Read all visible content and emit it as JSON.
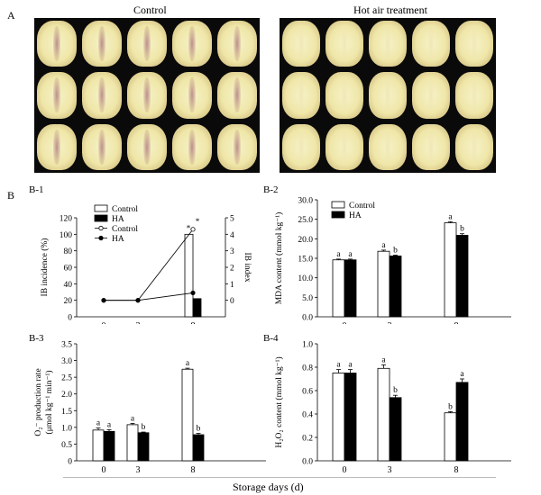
{
  "figure": {
    "panel_a_label": "A",
    "panel_b_label": "B",
    "photo_control_title": "Control",
    "photo_ha_title": "Hot air treatment",
    "shared_xlabel": "Storage days (d)"
  },
  "colors": {
    "control_bar": "#ffffff",
    "ha_bar": "#000000",
    "axis": "#000000",
    "photo_bg": "#0a0a0a"
  },
  "chart_data": [
    {
      "id": "B-1",
      "panel_label": "B-1",
      "type": "bar",
      "categories": [
        "0",
        "3",
        "8"
      ],
      "ylabel": "IB incidence (%)",
      "ylim": [
        0,
        120
      ],
      "yticks": [
        "0",
        "20",
        "40",
        "60",
        "80",
        "100",
        "120"
      ],
      "series": [
        {
          "name": "Control",
          "values": [
            0,
            0,
            100
          ]
        },
        {
          "name": "HA",
          "values": [
            0,
            0,
            22
          ]
        }
      ],
      "secondary": {
        "type": "line",
        "ylabel": "IB index",
        "ylim": [
          -1,
          5
        ],
        "yticks": [
          "0",
          "1",
          "2",
          "3",
          "4",
          "5"
        ],
        "series": [
          {
            "name": "Control",
            "values": [
              0,
              0,
              4.3
            ]
          },
          {
            "name": "HA",
            "values": [
              0,
              0,
              0.45
            ]
          }
        ]
      },
      "annotations": [
        "*",
        "*"
      ],
      "legend": {
        "position": "top-right",
        "entries": [
          "Control",
          "HA",
          "Control",
          "HA"
        ]
      }
    },
    {
      "id": "B-2",
      "panel_label": "B-2",
      "type": "bar",
      "categories": [
        "0",
        "3",
        "8"
      ],
      "ylabel": "MDA content (mmol kg⁻¹)",
      "ylim": [
        0,
        30
      ],
      "yticks": [
        "0.0",
        "5.0",
        "10.0",
        "15.0",
        "20.0",
        "25.0",
        "30.0"
      ],
      "series": [
        {
          "name": "Control",
          "values": [
            14.6,
            16.8,
            24.1
          ],
          "errors": [
            0.2,
            0.3,
            0.3
          ],
          "letters": [
            "a",
            "a",
            "a"
          ]
        },
        {
          "name": "HA",
          "values": [
            14.6,
            15.6,
            20.9
          ],
          "errors": [
            0.2,
            0.2,
            0.4
          ],
          "letters": [
            "a",
            "b",
            "b"
          ]
        }
      ],
      "legend": {
        "position": "top-left",
        "entries": [
          "Control",
          "HA"
        ]
      }
    },
    {
      "id": "B-3",
      "panel_label": "B-3",
      "type": "bar",
      "categories": [
        "0",
        "3",
        "8"
      ],
      "ylabel": "O₂⁻ production rate (μmol kg⁻¹ min⁻¹)",
      "ylabel_line1": "O₂⁻ production rate",
      "ylabel_line2": "(μmol kg⁻¹ min⁻¹)",
      "ylim": [
        0,
        3.5
      ],
      "yticks": [
        "0",
        "0.5",
        "1.0",
        "1.5",
        "2.0",
        "2.5",
        "3.0",
        "3.5"
      ],
      "series": [
        {
          "name": "Control",
          "values": [
            0.92,
            1.08,
            2.74
          ],
          "errors": [
            0.06,
            0.04,
            0.03
          ],
          "letters": [
            "a",
            "a",
            "a"
          ]
        },
        {
          "name": "HA",
          "values": [
            0.88,
            0.84,
            0.78
          ],
          "errors": [
            0.05,
            0.02,
            0.04
          ],
          "letters": [
            "a",
            "b",
            "b"
          ]
        }
      ]
    },
    {
      "id": "B-4",
      "panel_label": "B-4",
      "type": "bar",
      "categories": [
        "0",
        "3",
        "8"
      ],
      "ylabel": "H₂O₂ content (mmol kg⁻¹)",
      "ylim": [
        0,
        1.0
      ],
      "yticks": [
        "0.0",
        "0.2",
        "0.4",
        "0.6",
        "0.8",
        "1.0"
      ],
      "series": [
        {
          "name": "Control",
          "values": [
            0.75,
            0.79,
            0.41
          ],
          "errors": [
            0.03,
            0.03,
            0.01
          ],
          "letters": [
            "a",
            "a",
            "b"
          ]
        },
        {
          "name": "HA",
          "values": [
            0.75,
            0.54,
            0.67
          ],
          "errors": [
            0.03,
            0.02,
            0.03
          ],
          "letters": [
            "a",
            "b",
            "a"
          ]
        }
      ]
    }
  ]
}
